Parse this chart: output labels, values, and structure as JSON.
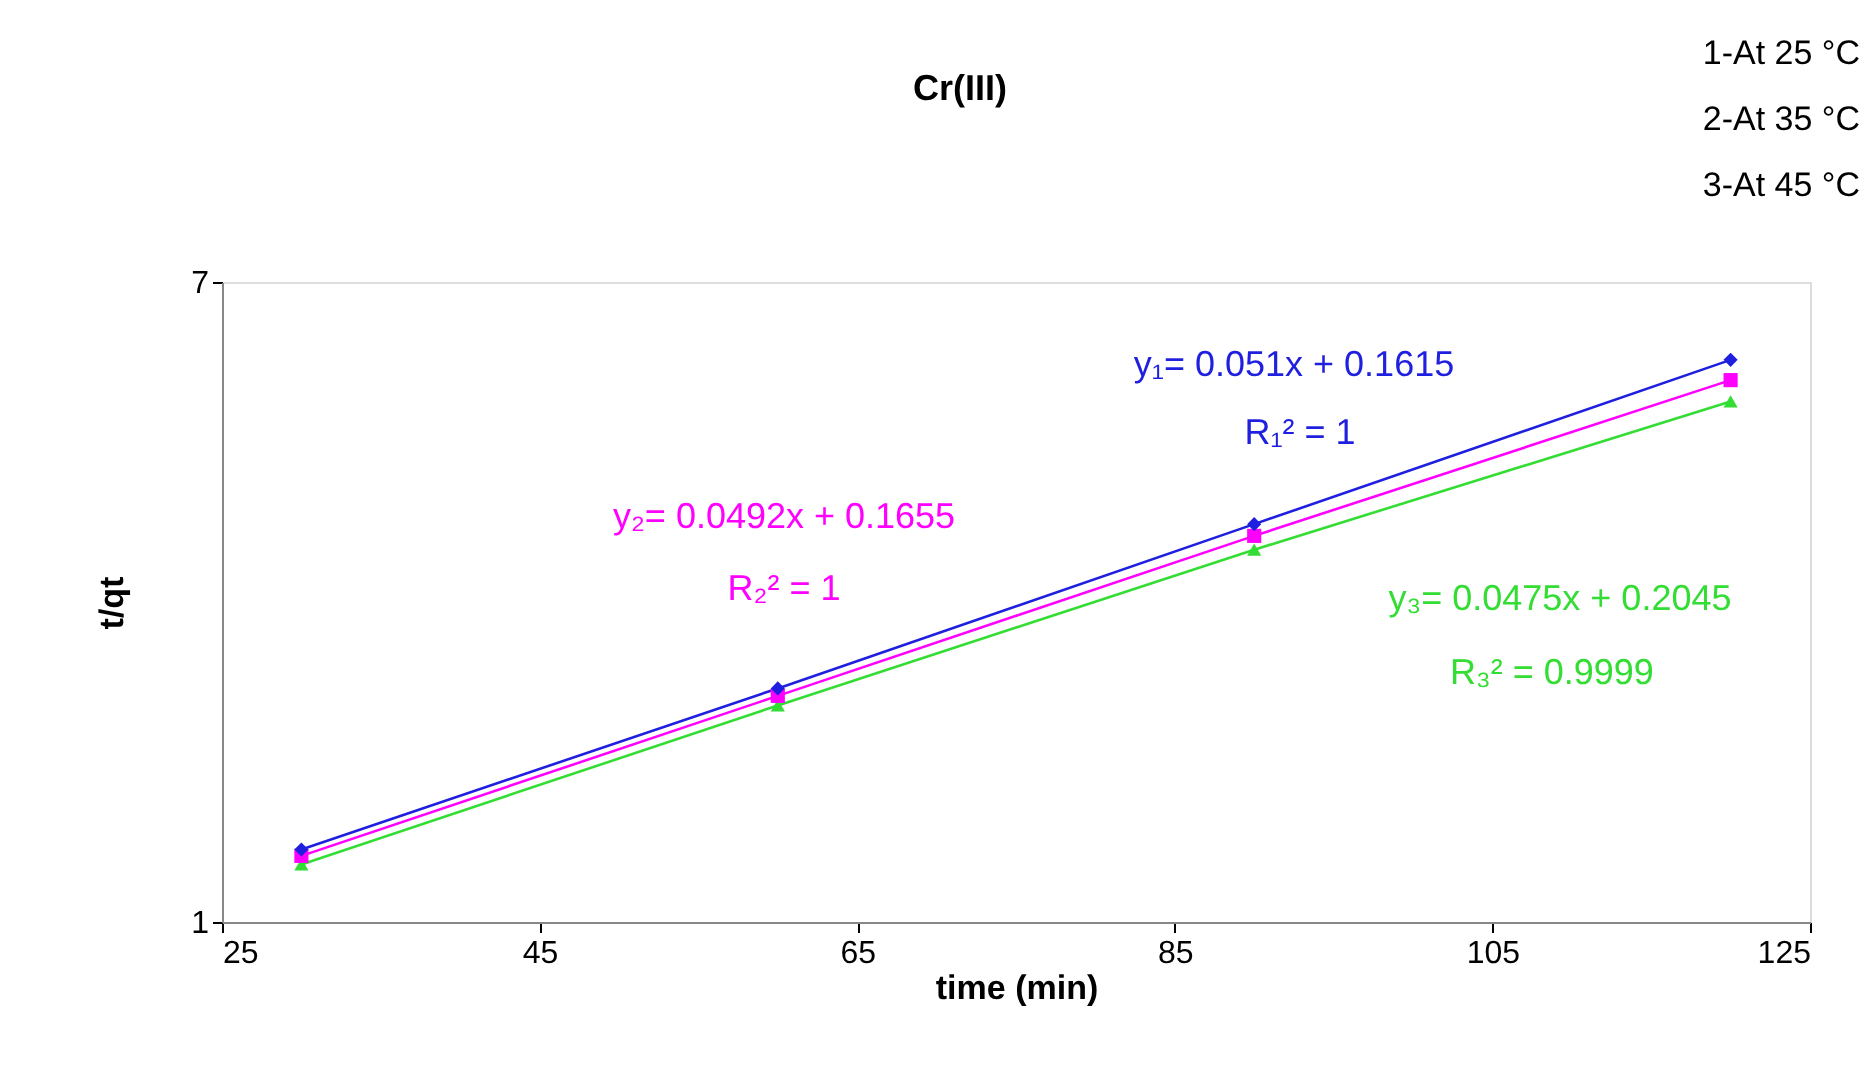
{
  "chart_data": {
    "type": "line",
    "title": "Cr(III)",
    "xlabel": "time (min)",
    "ylabel": "t/qt",
    "x": [
      30,
      60,
      90,
      120
    ],
    "series": [
      {
        "color": "#1f1fe0",
        "marker": "diamond",
        "values": [
          1.68,
          3.19,
          4.73,
          6.27
        ]
      },
      {
        "color": "#ff00ff",
        "marker": "square",
        "values": [
          1.62,
          3.12,
          4.62,
          6.08
        ]
      },
      {
        "color": "#33dd33",
        "marker": "triangle",
        "values": [
          1.54,
          3.03,
          4.49,
          5.88
        ]
      }
    ],
    "xlim": [
      25,
      125
    ],
    "xticks": [
      25,
      45,
      65,
      85,
      105,
      125
    ],
    "ylim": [
      1,
      7
    ],
    "yticks": [
      1,
      7
    ],
    "grid": false,
    "annotations": [
      "1-At 25 °C",
      "2-At 35 °C",
      "3-At 45 °C",
      "y₁= 0.051x + 0.1615",
      "R₁² = 1",
      "y₂= 0.0492x + 0.1655",
      "R₂² = 1",
      "y₃= 0.0475x + 0.2045",
      "R₃² = 0.9999"
    ]
  }
}
